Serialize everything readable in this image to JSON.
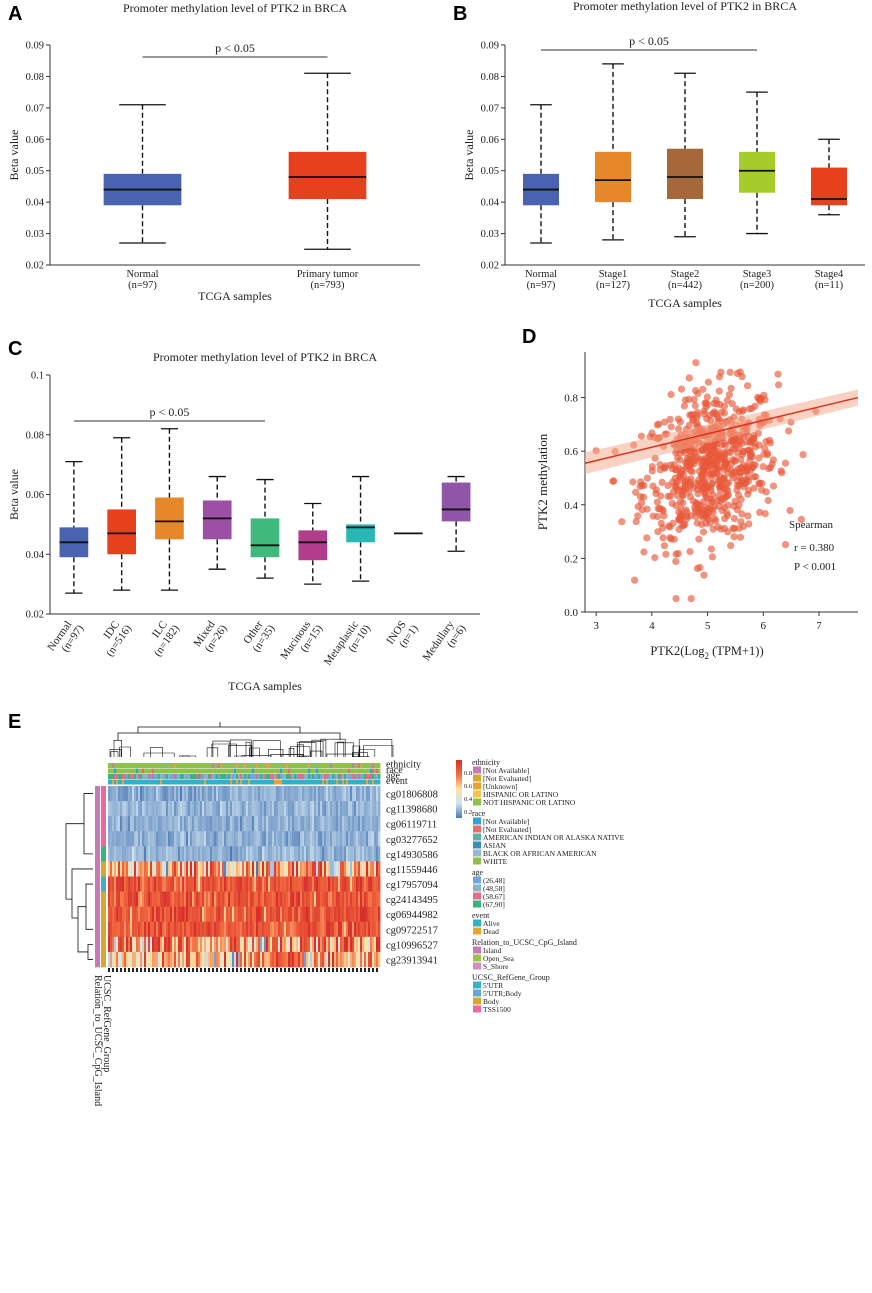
{
  "panel_labels": {
    "A": "A",
    "B": "B",
    "C": "C",
    "D": "D",
    "E": "E"
  },
  "chart_data": [
    {
      "type": "box",
      "panel": "A",
      "title": "Promoter methylation level of PTK2 in BRCA",
      "xlabel": "TCGA samples",
      "ylabel": "Beta value",
      "ylim": [
        0.02,
        0.09
      ],
      "yticks": [
        "0.02",
        "0.03",
        "0.04",
        "0.05",
        "0.06",
        "0.07",
        "0.08",
        "0.09"
      ],
      "significance": {
        "label": "p < 0.05",
        "from": 0,
        "to": 1
      },
      "boxes": [
        {
          "name": "Normal",
          "n": "(n=97)",
          "color": "#4a63b0",
          "min": 0.027,
          "q1": 0.039,
          "median": 0.044,
          "q3": 0.049,
          "max": 0.071
        },
        {
          "name": "Primary tumor",
          "n": "(n=793)",
          "color": "#e6411c",
          "min": 0.025,
          "q1": 0.041,
          "median": 0.048,
          "q3": 0.056,
          "max": 0.081
        }
      ]
    },
    {
      "type": "box",
      "panel": "B",
      "title": "Promoter methylation level of PTK2 in BRCA",
      "xlabel": "TCGA samples",
      "ylabel": "Beta value",
      "ylim": [
        0.02,
        0.09
      ],
      "yticks": [
        "0.02",
        "0.03",
        "0.04",
        "0.05",
        "0.06",
        "0.07",
        "0.08",
        "0.09"
      ],
      "significance": {
        "label": "p < 0.05",
        "from": 0,
        "to": 3
      },
      "boxes": [
        {
          "name": "Normal",
          "n": "(n=97)",
          "color": "#4a63b0",
          "min": 0.027,
          "q1": 0.039,
          "median": 0.044,
          "q3": 0.049,
          "max": 0.071
        },
        {
          "name": "Stage1",
          "n": "(n=127)",
          "color": "#e6882a",
          "min": 0.028,
          "q1": 0.04,
          "median": 0.047,
          "q3": 0.056,
          "max": 0.084
        },
        {
          "name": "Stage2",
          "n": "(n=442)",
          "color": "#a5683a",
          "min": 0.029,
          "q1": 0.041,
          "median": 0.048,
          "q3": 0.057,
          "max": 0.081
        },
        {
          "name": "Stage3",
          "n": "(n=200)",
          "color": "#a6cc2b",
          "min": 0.03,
          "q1": 0.043,
          "median": 0.05,
          "q3": 0.056,
          "max": 0.075
        },
        {
          "name": "Stage4",
          "n": "(n=11)",
          "color": "#e6411c",
          "min": 0.036,
          "q1": 0.039,
          "median": 0.041,
          "q3": 0.051,
          "max": 0.06
        }
      ]
    },
    {
      "type": "box",
      "panel": "C",
      "title": "Promoter methylation level of PTK2 in BRCA",
      "xlabel": "TCGA samples",
      "ylabel": "Beta value",
      "ylim": [
        0.02,
        0.1
      ],
      "yticks": [
        "0.02",
        "0.04",
        "0.06",
        "0.08",
        "0.1"
      ],
      "significance": {
        "label": "p < 0.05",
        "from": 0,
        "to": 4
      },
      "boxes": [
        {
          "name": "Normal",
          "n": "(n=97)",
          "color": "#4a63b0",
          "min": 0.027,
          "q1": 0.039,
          "median": 0.044,
          "q3": 0.049,
          "max": 0.071
        },
        {
          "name": "IDC",
          "n": "(n=516)",
          "color": "#e6411c",
          "min": 0.028,
          "q1": 0.04,
          "median": 0.047,
          "q3": 0.055,
          "max": 0.079
        },
        {
          "name": "ILC",
          "n": "(n=182)",
          "color": "#e6882a",
          "min": 0.028,
          "q1": 0.045,
          "median": 0.051,
          "q3": 0.059,
          "max": 0.082
        },
        {
          "name": "Mixed",
          "n": "(n=26)",
          "color": "#9b4fa5",
          "min": 0.035,
          "q1": 0.045,
          "median": 0.052,
          "q3": 0.058,
          "max": 0.066
        },
        {
          "name": "Other",
          "n": "(n=35)",
          "color": "#3fba7c",
          "min": 0.032,
          "q1": 0.039,
          "median": 0.043,
          "q3": 0.052,
          "max": 0.065
        },
        {
          "name": "Mucinous",
          "n": "(n=15)",
          "color": "#b23d8c",
          "min": 0.03,
          "q1": 0.038,
          "median": 0.044,
          "q3": 0.048,
          "max": 0.057
        },
        {
          "name": "Metaplastic",
          "n": "(n=10)",
          "color": "#2bb6b6",
          "min": 0.031,
          "q1": 0.044,
          "median": 0.049,
          "q3": 0.05,
          "max": 0.066
        },
        {
          "name": "INOS",
          "n": "(n=1)",
          "color": "#555555",
          "min": 0.047,
          "q1": 0.047,
          "median": 0.047,
          "q3": 0.047,
          "max": 0.047
        },
        {
          "name": "Medullary",
          "n": "(n=6)",
          "color": "#8e55a8",
          "min": 0.041,
          "q1": 0.051,
          "median": 0.055,
          "q3": 0.064,
          "max": 0.066
        }
      ]
    },
    {
      "type": "scatter",
      "panel": "D",
      "xlabel_main": "PTK2(Log",
      "xlabel_sub": "2",
      "xlabel_tail": " (TPM+1))",
      "ylabel": "PTK2  methylation",
      "xlim": [
        2.8,
        7.7
      ],
      "ylim": [
        0.0,
        0.97
      ],
      "xticks": [
        3,
        4,
        5,
        6,
        7
      ],
      "yticks": [
        "0.0",
        "0.2",
        "0.4",
        "0.6",
        "0.8"
      ],
      "point_color": "#e8593a",
      "line_color": "#d9331a",
      "regression": {
        "x0": 2.8,
        "y0": 0.555,
        "x1": 7.7,
        "y1": 0.8
      },
      "stats": {
        "method": "Spearman",
        "r": "r = 0.380",
        "p": "P < 0.001"
      },
      "n_points": 700
    },
    {
      "type": "heatmap",
      "panel": "E",
      "rows": [
        "cg01806808",
        "cg11398680",
        "cg06119711",
        "cg03277652",
        "cg14930586",
        "cg11559446",
        "cg17957094",
        "cg24143495",
        "cg06944982",
        "cg09722517",
        "cg10996527",
        "cg23913941"
      ],
      "row_means": [
        0.15,
        0.17,
        0.15,
        0.16,
        0.17,
        0.66,
        0.84,
        0.83,
        0.84,
        0.83,
        0.72,
        0.62
      ],
      "top_tracks": [
        "ethnicity",
        "race",
        "age",
        "event"
      ],
      "side_tracks": [
        "UCSC_RefGene_Group",
        "Relation_to_UCSC_CpG_Island"
      ],
      "colorbar": {
        "max_label": "0.8",
        "ticks": [
          "0.8",
          "0.6",
          "0.4",
          "0.2"
        ],
        "colors": [
          "#d7302c",
          "#f26b3f",
          "#fbe3a3",
          "#cfe3ef",
          "#4a78b5"
        ]
      },
      "legend": [
        {
          "title": "ethnicity",
          "items": [
            {
              "label": "[Not Available]",
              "color": "#c77ab4"
            },
            {
              "label": "[Not Evaluated]",
              "color": "#d6a92a"
            },
            {
              "label": "[Unknown]",
              "color": "#e8a432"
            },
            {
              "label": "HISPANIC OR LATINO",
              "color": "#f4c542"
            },
            {
              "label": "NOT HISPANIC OR LATINO",
              "color": "#8fc04a"
            }
          ]
        },
        {
          "title": "race",
          "items": [
            {
              "label": "[Not Available]",
              "color": "#2ea3d6"
            },
            {
              "label": "[Not Evaluated]",
              "color": "#e76c6c"
            },
            {
              "label": "AMERICAN INDIAN OR ALASKA NATIVE",
              "color": "#58b4a2"
            },
            {
              "label": "ASIAN",
              "color": "#3a8dbd"
            },
            {
              "label": "BLACK OR AFRICAN AMERICAN",
              "color": "#9ab7d1"
            },
            {
              "label": "WHITE",
              "color": "#8fc04a"
            }
          ]
        },
        {
          "title": "age",
          "items": [
            {
              "label": "(26,48]",
              "color": "#6fa8dc"
            },
            {
              "label": "(48,58]",
              "color": "#8ab2c8"
            },
            {
              "label": "(58,67]",
              "color": "#e76c8a"
            },
            {
              "label": "(67,90]",
              "color": "#3bb37e"
            }
          ]
        },
        {
          "title": "event",
          "items": [
            {
              "label": "Alive",
              "color": "#2fb2c9"
            },
            {
              "label": "Dead",
              "color": "#e8a432"
            }
          ]
        },
        {
          "title": "Relation_to_UCSC_CpG_Island",
          "items": [
            {
              "label": "Island",
              "color": "#c77ab4"
            },
            {
              "label": "Open_Sea",
              "color": "#9cc24a"
            },
            {
              "label": "S_Shore",
              "color": "#d08cc4"
            }
          ]
        },
        {
          "title": "UCSC_RefGene_Group",
          "items": [
            {
              "label": "5'UTR",
              "color": "#3bb0c9"
            },
            {
              "label": "5'UTR;Body",
              "color": "#5fa8d6"
            },
            {
              "label": "Body",
              "color": "#d6a92a"
            },
            {
              "label": "TSS1500",
              "color": "#e86aa0"
            }
          ]
        }
      ],
      "side_colors": {
        "UCSC_RefGene_Group": [
          "#e86aa0",
          "#e86aa0",
          "#e86aa0",
          "#e86aa0",
          "#3bb37e",
          "#d6a92a",
          "#3bb0c9",
          "#d6a92a",
          "#d6a92a",
          "#d6a92a",
          "#d6a92a",
          "#d6a92a"
        ],
        "Relation_to_UCSC_CpG_Island": [
          "#c77ab4",
          "#c77ab4",
          "#c77ab4",
          "#c77ab4",
          "#c77ab4",
          "#c77ab4",
          "#c77ab4",
          "#c77ab4",
          "#c77ab4",
          "#c77ab4",
          "#c77ab4",
          "#c77ab4"
        ]
      }
    }
  ]
}
